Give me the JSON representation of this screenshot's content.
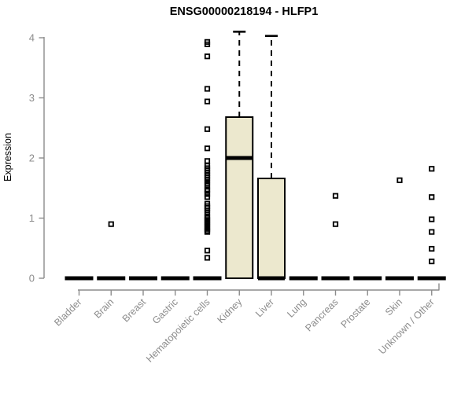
{
  "chart_data": {
    "type": "boxplot",
    "title": "ENSG00000218194 - HLFP1",
    "ylabel": "Expression",
    "xlabel": "",
    "ylim": [
      0,
      4
    ],
    "yticks": [
      0,
      1,
      2,
      3,
      4
    ],
    "grid": false,
    "legend": false,
    "colors": {
      "box_fill": "#ECE8CE",
      "box_stroke": "#000000",
      "axis": "#8C8C8C",
      "tick_text": "#8C8C8C",
      "title_text": "#000000",
      "outlier": "#000000"
    },
    "categories": [
      "Bladder",
      "Brain",
      "Breast",
      "Gastric",
      "Hematopoietic cells",
      "Kidney",
      "Liver",
      "Lung",
      "Pancreas",
      "Prostate",
      "Skin",
      "Unknown / Other"
    ],
    "series": [
      {
        "name": "Bladder",
        "q1": 0,
        "median": 0,
        "q3": 0,
        "whisker_high": null,
        "outliers": []
      },
      {
        "name": "Brain",
        "q1": 0,
        "median": 0,
        "q3": 0,
        "whisker_high": null,
        "outliers": [
          0.9
        ]
      },
      {
        "name": "Breast",
        "q1": 0,
        "median": 0,
        "q3": 0,
        "whisker_high": null,
        "outliers": []
      },
      {
        "name": "Gastric",
        "q1": 0,
        "median": 0,
        "q3": 0,
        "whisker_high": null,
        "outliers": []
      },
      {
        "name": "Hematopoietic cells",
        "q1": 0,
        "median": 0,
        "q3": 0,
        "whisker_high": null,
        "outliers": [
          3.93,
          3.89,
          3.69,
          3.15,
          2.94,
          2.48,
          2.16,
          1.95,
          1.87,
          1.83,
          1.79,
          1.75,
          1.71,
          1.67,
          1.63,
          1.58,
          1.54,
          1.48,
          1.45,
          1.4,
          1.35,
          1.24,
          1.2,
          1.17,
          1.13,
          1.09,
          1.03,
          1.0,
          0.97,
          0.94,
          0.91,
          0.88,
          0.85,
          0.82,
          0.79,
          0.77,
          0.46,
          0.34
        ]
      },
      {
        "name": "Kidney",
        "q1": 0,
        "median": 2.0,
        "q3": 2.68,
        "whisker_high": 4.1,
        "outliers": []
      },
      {
        "name": "Liver",
        "q1": 0,
        "median": 0,
        "q3": 1.66,
        "whisker_high": 4.03,
        "outliers": []
      },
      {
        "name": "Lung",
        "q1": 0,
        "median": 0,
        "q3": 0,
        "whisker_high": null,
        "outliers": []
      },
      {
        "name": "Pancreas",
        "q1": 0,
        "median": 0,
        "q3": 0,
        "whisker_high": null,
        "outliers": [
          1.37,
          0.9
        ]
      },
      {
        "name": "Prostate",
        "q1": 0,
        "median": 0,
        "q3": 0,
        "whisker_high": null,
        "outliers": []
      },
      {
        "name": "Skin",
        "q1": 0,
        "median": 0,
        "q3": 0,
        "whisker_high": null,
        "outliers": [
          1.63
        ]
      },
      {
        "name": "Unknown / Other",
        "q1": 0,
        "median": 0,
        "q3": 0,
        "whisker_high": null,
        "outliers": [
          1.82,
          1.35,
          0.98,
          0.77,
          0.49,
          0.28
        ]
      }
    ]
  }
}
